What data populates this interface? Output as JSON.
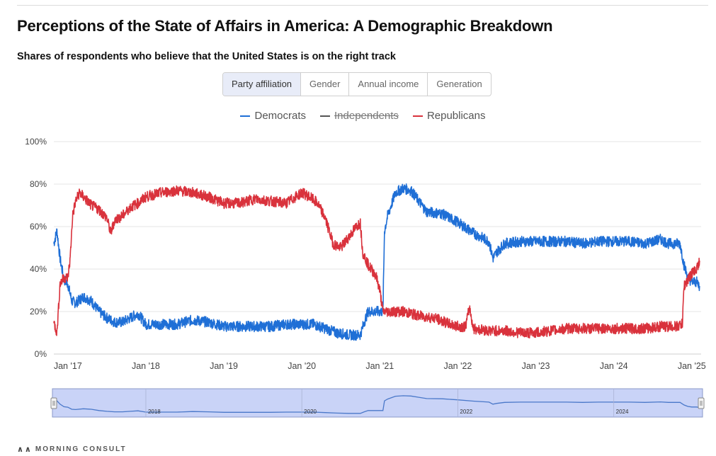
{
  "header": {
    "title": "Perceptions of the State of Affairs in America: A Demographic Breakdown",
    "subtitle": "Shares of respondents who believe that the United States is on the right track"
  },
  "tabs": [
    {
      "label": "Party affiliation",
      "active": true
    },
    {
      "label": "Gender",
      "active": false
    },
    {
      "label": "Annual income",
      "active": false
    },
    {
      "label": "Generation",
      "active": false
    }
  ],
  "legend": [
    {
      "label": "Democrats",
      "color": "#1f6fd6",
      "visible": true
    },
    {
      "label": "Independents",
      "color": "#555555",
      "visible": false
    },
    {
      "label": "Republicans",
      "color": "#d9323c",
      "visible": true
    }
  ],
  "footer": {
    "brand": "MORNING CONSULT"
  },
  "navigator": {
    "labels": [
      "2018",
      "2020",
      "2022",
      "2024"
    ]
  },
  "chart_data": {
    "type": "line",
    "ylim": [
      0,
      100
    ],
    "yticks": [
      "0%",
      "20%",
      "40%",
      "60%",
      "80%",
      "100%"
    ],
    "xlim": [
      2016.82,
      2025.12
    ],
    "xticks": [
      {
        "x": 2017.0,
        "label": "Jan '17"
      },
      {
        "x": 2018.0,
        "label": "Jan '18"
      },
      {
        "x": 2019.0,
        "label": "Jan '19"
      },
      {
        "x": 2020.0,
        "label": "Jan '20"
      },
      {
        "x": 2021.0,
        "label": "Jan '21"
      },
      {
        "x": 2022.0,
        "label": "Jan '22"
      },
      {
        "x": 2023.0,
        "label": "Jan '23"
      },
      {
        "x": 2024.0,
        "label": "Jan '24"
      },
      {
        "x": 2025.0,
        "label": "Jan '25"
      }
    ],
    "grid": true,
    "legend_position": "top-center",
    "series": [
      {
        "name": "Democrats",
        "color": "#1f6fd6",
        "points": [
          [
            2016.82,
            52
          ],
          [
            2016.86,
            58
          ],
          [
            2016.9,
            45
          ],
          [
            2016.95,
            35
          ],
          [
            2017.0,
            33
          ],
          [
            2017.05,
            25
          ],
          [
            2017.1,
            24
          ],
          [
            2017.2,
            27
          ],
          [
            2017.3,
            25
          ],
          [
            2017.4,
            20
          ],
          [
            2017.5,
            17
          ],
          [
            2017.6,
            15
          ],
          [
            2017.7,
            15
          ],
          [
            2017.8,
            17
          ],
          [
            2017.9,
            19
          ],
          [
            2018.0,
            14
          ],
          [
            2018.2,
            14
          ],
          [
            2018.4,
            14
          ],
          [
            2018.6,
            16
          ],
          [
            2018.8,
            15
          ],
          [
            2019.0,
            13
          ],
          [
            2019.2,
            13
          ],
          [
            2019.4,
            13
          ],
          [
            2019.6,
            13
          ],
          [
            2019.8,
            14
          ],
          [
            2020.0,
            14
          ],
          [
            2020.15,
            14
          ],
          [
            2020.3,
            12
          ],
          [
            2020.45,
            10
          ],
          [
            2020.6,
            9
          ],
          [
            2020.75,
            9
          ],
          [
            2020.8,
            15
          ],
          [
            2020.85,
            20
          ],
          [
            2020.95,
            20
          ],
          [
            2021.04,
            20
          ],
          [
            2021.06,
            58
          ],
          [
            2021.1,
            65
          ],
          [
            2021.2,
            76
          ],
          [
            2021.3,
            78
          ],
          [
            2021.4,
            77
          ],
          [
            2021.5,
            72
          ],
          [
            2021.6,
            67
          ],
          [
            2021.8,
            66
          ],
          [
            2022.0,
            62
          ],
          [
            2022.2,
            57
          ],
          [
            2022.4,
            53
          ],
          [
            2022.45,
            45
          ],
          [
            2022.5,
            48
          ],
          [
            2022.6,
            52
          ],
          [
            2022.8,
            53
          ],
          [
            2023.0,
            53
          ],
          [
            2023.2,
            53
          ],
          [
            2023.4,
            53
          ],
          [
            2023.6,
            52
          ],
          [
            2023.8,
            53
          ],
          [
            2024.0,
            53
          ],
          [
            2024.2,
            53
          ],
          [
            2024.4,
            52
          ],
          [
            2024.6,
            54
          ],
          [
            2024.7,
            52
          ],
          [
            2024.85,
            52
          ],
          [
            2024.9,
            42
          ],
          [
            2024.95,
            36
          ],
          [
            2025.0,
            34
          ],
          [
            2025.06,
            34
          ],
          [
            2025.1,
            32
          ]
        ]
      },
      {
        "name": "Republicans",
        "color": "#d9323c",
        "points": [
          [
            2016.82,
            15
          ],
          [
            2016.86,
            10
          ],
          [
            2016.9,
            33
          ],
          [
            2016.95,
            36
          ],
          [
            2017.0,
            36
          ],
          [
            2017.03,
            45
          ],
          [
            2017.06,
            65
          ],
          [
            2017.1,
            72
          ],
          [
            2017.15,
            76
          ],
          [
            2017.2,
            74
          ],
          [
            2017.3,
            70
          ],
          [
            2017.4,
            68
          ],
          [
            2017.5,
            64
          ],
          [
            2017.55,
            57
          ],
          [
            2017.6,
            63
          ],
          [
            2017.7,
            65
          ],
          [
            2017.8,
            69
          ],
          [
            2017.9,
            71
          ],
          [
            2018.0,
            74
          ],
          [
            2018.2,
            76
          ],
          [
            2018.4,
            77
          ],
          [
            2018.6,
            76
          ],
          [
            2018.8,
            74
          ],
          [
            2019.0,
            71
          ],
          [
            2019.2,
            71
          ],
          [
            2019.4,
            73
          ],
          [
            2019.6,
            72
          ],
          [
            2019.8,
            71
          ],
          [
            2020.0,
            76
          ],
          [
            2020.1,
            74
          ],
          [
            2020.2,
            71
          ],
          [
            2020.3,
            64
          ],
          [
            2020.4,
            52
          ],
          [
            2020.5,
            50
          ],
          [
            2020.6,
            55
          ],
          [
            2020.7,
            60
          ],
          [
            2020.75,
            62
          ],
          [
            2020.78,
            48
          ],
          [
            2020.85,
            42
          ],
          [
            2020.95,
            37
          ],
          [
            2021.0,
            30
          ],
          [
            2021.04,
            20
          ],
          [
            2021.1,
            20
          ],
          [
            2021.3,
            20
          ],
          [
            2021.5,
            18
          ],
          [
            2021.7,
            17
          ],
          [
            2021.9,
            14
          ],
          [
            2022.0,
            13
          ],
          [
            2022.1,
            13
          ],
          [
            2022.15,
            22
          ],
          [
            2022.2,
            12
          ],
          [
            2022.4,
            11
          ],
          [
            2022.6,
            11
          ],
          [
            2022.8,
            10
          ],
          [
            2023.0,
            10
          ],
          [
            2023.2,
            11
          ],
          [
            2023.4,
            12
          ],
          [
            2023.6,
            12
          ],
          [
            2023.8,
            12
          ],
          [
            2024.0,
            12
          ],
          [
            2024.2,
            12
          ],
          [
            2024.4,
            12
          ],
          [
            2024.6,
            13
          ],
          [
            2024.8,
            13
          ],
          [
            2024.88,
            14
          ],
          [
            2024.9,
            32
          ],
          [
            2024.95,
            35
          ],
          [
            2025.0,
            38
          ],
          [
            2025.06,
            40
          ],
          [
            2025.1,
            44
          ]
        ]
      }
    ]
  }
}
